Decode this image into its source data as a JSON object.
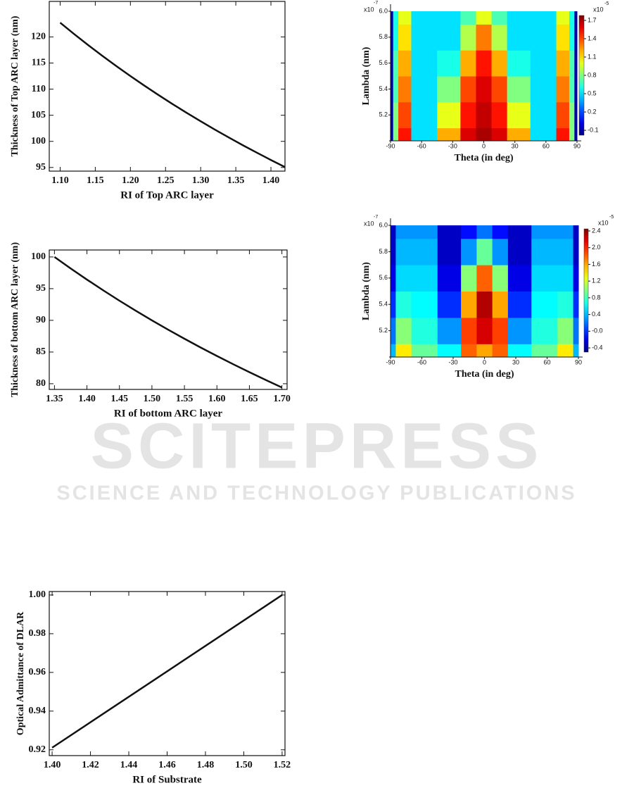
{
  "watermark": {
    "title": "SCITEPRESS",
    "subtitle": "SCIENCE AND TECHNOLOGY PUBLICATIONS"
  },
  "chart_data": [
    {
      "type": "line",
      "xlabel": "RI of Top ARC layer",
      "ylabel": "Thickness  of  Top ARC layer (nm)",
      "color": "#111111",
      "x": [
        1.1,
        1.12,
        1.14,
        1.16,
        1.18,
        1.2,
        1.22,
        1.24,
        1.26,
        1.28,
        1.3,
        1.32,
        1.34,
        1.36,
        1.38,
        1.4,
        1.42
      ],
      "values": [
        122.73,
        120.54,
        118.42,
        116.38,
        114.41,
        112.5,
        110.66,
        108.87,
        107.14,
        105.47,
        103.85,
        102.27,
        100.75,
        99.26,
        97.83,
        96.43,
        95.07
      ],
      "xlim": [
        1.0845,
        1.42
      ],
      "ylim": [
        94.3,
        126.8
      ],
      "xticks": [
        {
          "value": 1.1,
          "label": "1.10"
        },
        {
          "value": 1.15,
          "label": "1.15"
        },
        {
          "value": 1.2,
          "label": "1.20"
        },
        {
          "value": 1.25,
          "label": "1.25"
        },
        {
          "value": 1.3,
          "label": "1.30"
        },
        {
          "value": 1.35,
          "label": "1.35"
        },
        {
          "value": 1.4,
          "label": "1.40"
        }
      ],
      "yticks": [
        95,
        100,
        105,
        110,
        115,
        120
      ]
    },
    {
      "type": "line",
      "xlabel": "RI of bottom ARC layer",
      "ylabel": "Thickness  of  bottom ARC layer (nm)",
      "color": "#111111",
      "x": [
        1.35,
        1.375,
        1.4,
        1.425,
        1.45,
        1.475,
        1.5,
        1.525,
        1.55,
        1.575,
        1.6,
        1.625,
        1.65,
        1.675,
        1.7
      ],
      "values": [
        100.0,
        98.18,
        96.43,
        94.74,
        93.1,
        91.53,
        90.0,
        88.52,
        87.1,
        85.71,
        84.38,
        83.08,
        81.82,
        80.6,
        79.41
      ],
      "xlim": [
        1.342,
        1.708
      ],
      "ylim": [
        79.1,
        101.1
      ],
      "xticks": [
        1.35,
        {
          "value": 1.4,
          "label": "1.40"
        },
        1.45,
        {
          "value": 1.5,
          "label": "1.50"
        },
        1.55,
        {
          "value": 1.6,
          "label": "1.60"
        },
        1.65,
        {
          "value": 1.7,
          "label": "1.70"
        }
      ],
      "yticks": [
        80,
        85,
        90,
        95,
        100
      ]
    },
    {
      "type": "heatmap",
      "xlabel": "Theta (in deg)",
      "ylabel": "Lambda (nm)",
      "y_multiplier": "x10",
      "y_exponent": "-7",
      "z_multiplier": "x10",
      "z_exponent": "-5",
      "x": [
        -90,
        -85,
        -80,
        -60,
        -30,
        -15,
        0,
        15,
        30,
        60,
        80,
        85,
        90
      ],
      "y": [
        5.0,
        5.2,
        5.4,
        5.6,
        5.8,
        6.0
      ],
      "z": [
        [
          -0.1,
          0.8,
          1.5,
          0.5,
          1.2,
          1.6,
          1.7,
          1.6,
          1.2,
          0.5,
          1.5,
          0.8,
          -0.1
        ],
        [
          -0.1,
          0.8,
          1.4,
          0.5,
          1.0,
          1.5,
          1.65,
          1.5,
          1.0,
          0.5,
          1.4,
          0.8,
          -0.1
        ],
        [
          -0.1,
          0.7,
          1.3,
          0.5,
          0.8,
          1.4,
          1.6,
          1.4,
          0.8,
          0.5,
          1.3,
          0.7,
          -0.1
        ],
        [
          -0.1,
          0.7,
          1.2,
          0.5,
          0.6,
          1.2,
          1.5,
          1.2,
          0.6,
          0.5,
          1.2,
          0.7,
          -0.1
        ],
        [
          -0.1,
          0.6,
          1.1,
          0.5,
          0.5,
          0.9,
          1.3,
          0.9,
          0.5,
          0.5,
          1.1,
          0.6,
          -0.1
        ],
        [
          -0.1,
          0.6,
          1.0,
          0.5,
          0.5,
          0.7,
          1.0,
          0.7,
          0.5,
          0.5,
          1.0,
          0.6,
          -0.1
        ]
      ],
      "xlim": [
        -90,
        90
      ],
      "ylim": [
        5.0,
        6.0
      ],
      "zlim": [
        -0.18,
        1.78
      ],
      "xticks": [
        -90,
        -60,
        -30,
        0,
        30,
        60,
        90
      ],
      "yticks": [
        5.2,
        5.4,
        5.6,
        5.8,
        {
          "value": 6,
          "label": "6.0"
        }
      ],
      "zticks": [
        -0.1,
        0.2,
        0.5,
        0.8,
        1.1,
        1.4,
        1.7
      ]
    },
    {
      "type": "heatmap",
      "xlabel": "Theta (in deg)",
      "ylabel": "Lambda (nm)",
      "y_multiplier": "x10",
      "y_exponent": "-7",
      "z_multiplier": "x10",
      "z_exponent": "-5",
      "x": [
        -90,
        -80,
        -60,
        -30,
        -15,
        0,
        15,
        30,
        60,
        80,
        90
      ],
      "y": [
        5.0,
        5.2,
        5.4,
        5.6,
        5.8,
        6.0
      ],
      "z": [
        [
          0.4,
          1.4,
          0.9,
          0.6,
          1.8,
          1.6,
          1.8,
          0.6,
          0.9,
          1.4,
          0.4
        ],
        [
          0.2,
          1.0,
          0.7,
          0.3,
          1.9,
          2.2,
          1.9,
          0.3,
          0.7,
          1.0,
          0.2
        ],
        [
          0.0,
          0.7,
          0.6,
          0.0,
          1.6,
          2.3,
          1.6,
          0.0,
          0.6,
          0.7,
          0.0
        ],
        [
          -0.2,
          0.5,
          0.5,
          -0.2,
          1.0,
          1.8,
          1.0,
          -0.2,
          0.5,
          0.5,
          -0.2
        ],
        [
          -0.3,
          0.4,
          0.4,
          -0.3,
          0.3,
          0.9,
          0.3,
          -0.3,
          0.4,
          0.4,
          -0.3
        ],
        [
          -0.3,
          0.3,
          0.3,
          -0.3,
          -0.1,
          0.2,
          -0.1,
          -0.3,
          0.3,
          0.3,
          -0.3
        ]
      ],
      "xlim": [
        -90,
        90
      ],
      "ylim": [
        5.0,
        6.0
      ],
      "zlim": [
        -0.5,
        2.45
      ],
      "xticks": [
        -90,
        -60,
        -30,
        0,
        30,
        60,
        90
      ],
      "yticks": [
        5.2,
        5.4,
        5.6,
        5.8,
        {
          "value": 6,
          "label": "6.0"
        }
      ],
      "zticks": [
        -0.4,
        {
          "value": 0,
          "label": "-0.0"
        },
        0.4,
        0.8,
        1.2,
        1.6,
        {
          "value": 2,
          "label": "2.0"
        },
        2.4
      ]
    },
    {
      "type": "line",
      "xlabel": "RI of Substrate",
      "ylabel": "Optical Admittance of DLAR",
      "color": "#111111",
      "x": [
        1.4,
        1.52
      ],
      "values": [
        0.9211,
        1.0
      ],
      "xlim": [
        1.3985,
        1.5215
      ],
      "ylim": [
        0.917,
        1.0018
      ],
      "xticks": [
        {
          "value": 1.4,
          "label": "1.40"
        },
        1.42,
        1.44,
        1.46,
        1.48,
        {
          "value": 1.5,
          "label": "1.50"
        },
        1.52
      ],
      "yticks": [
        0.92,
        0.94,
        0.96,
        0.98,
        {
          "value": 1,
          "label": "1.00"
        }
      ]
    }
  ]
}
